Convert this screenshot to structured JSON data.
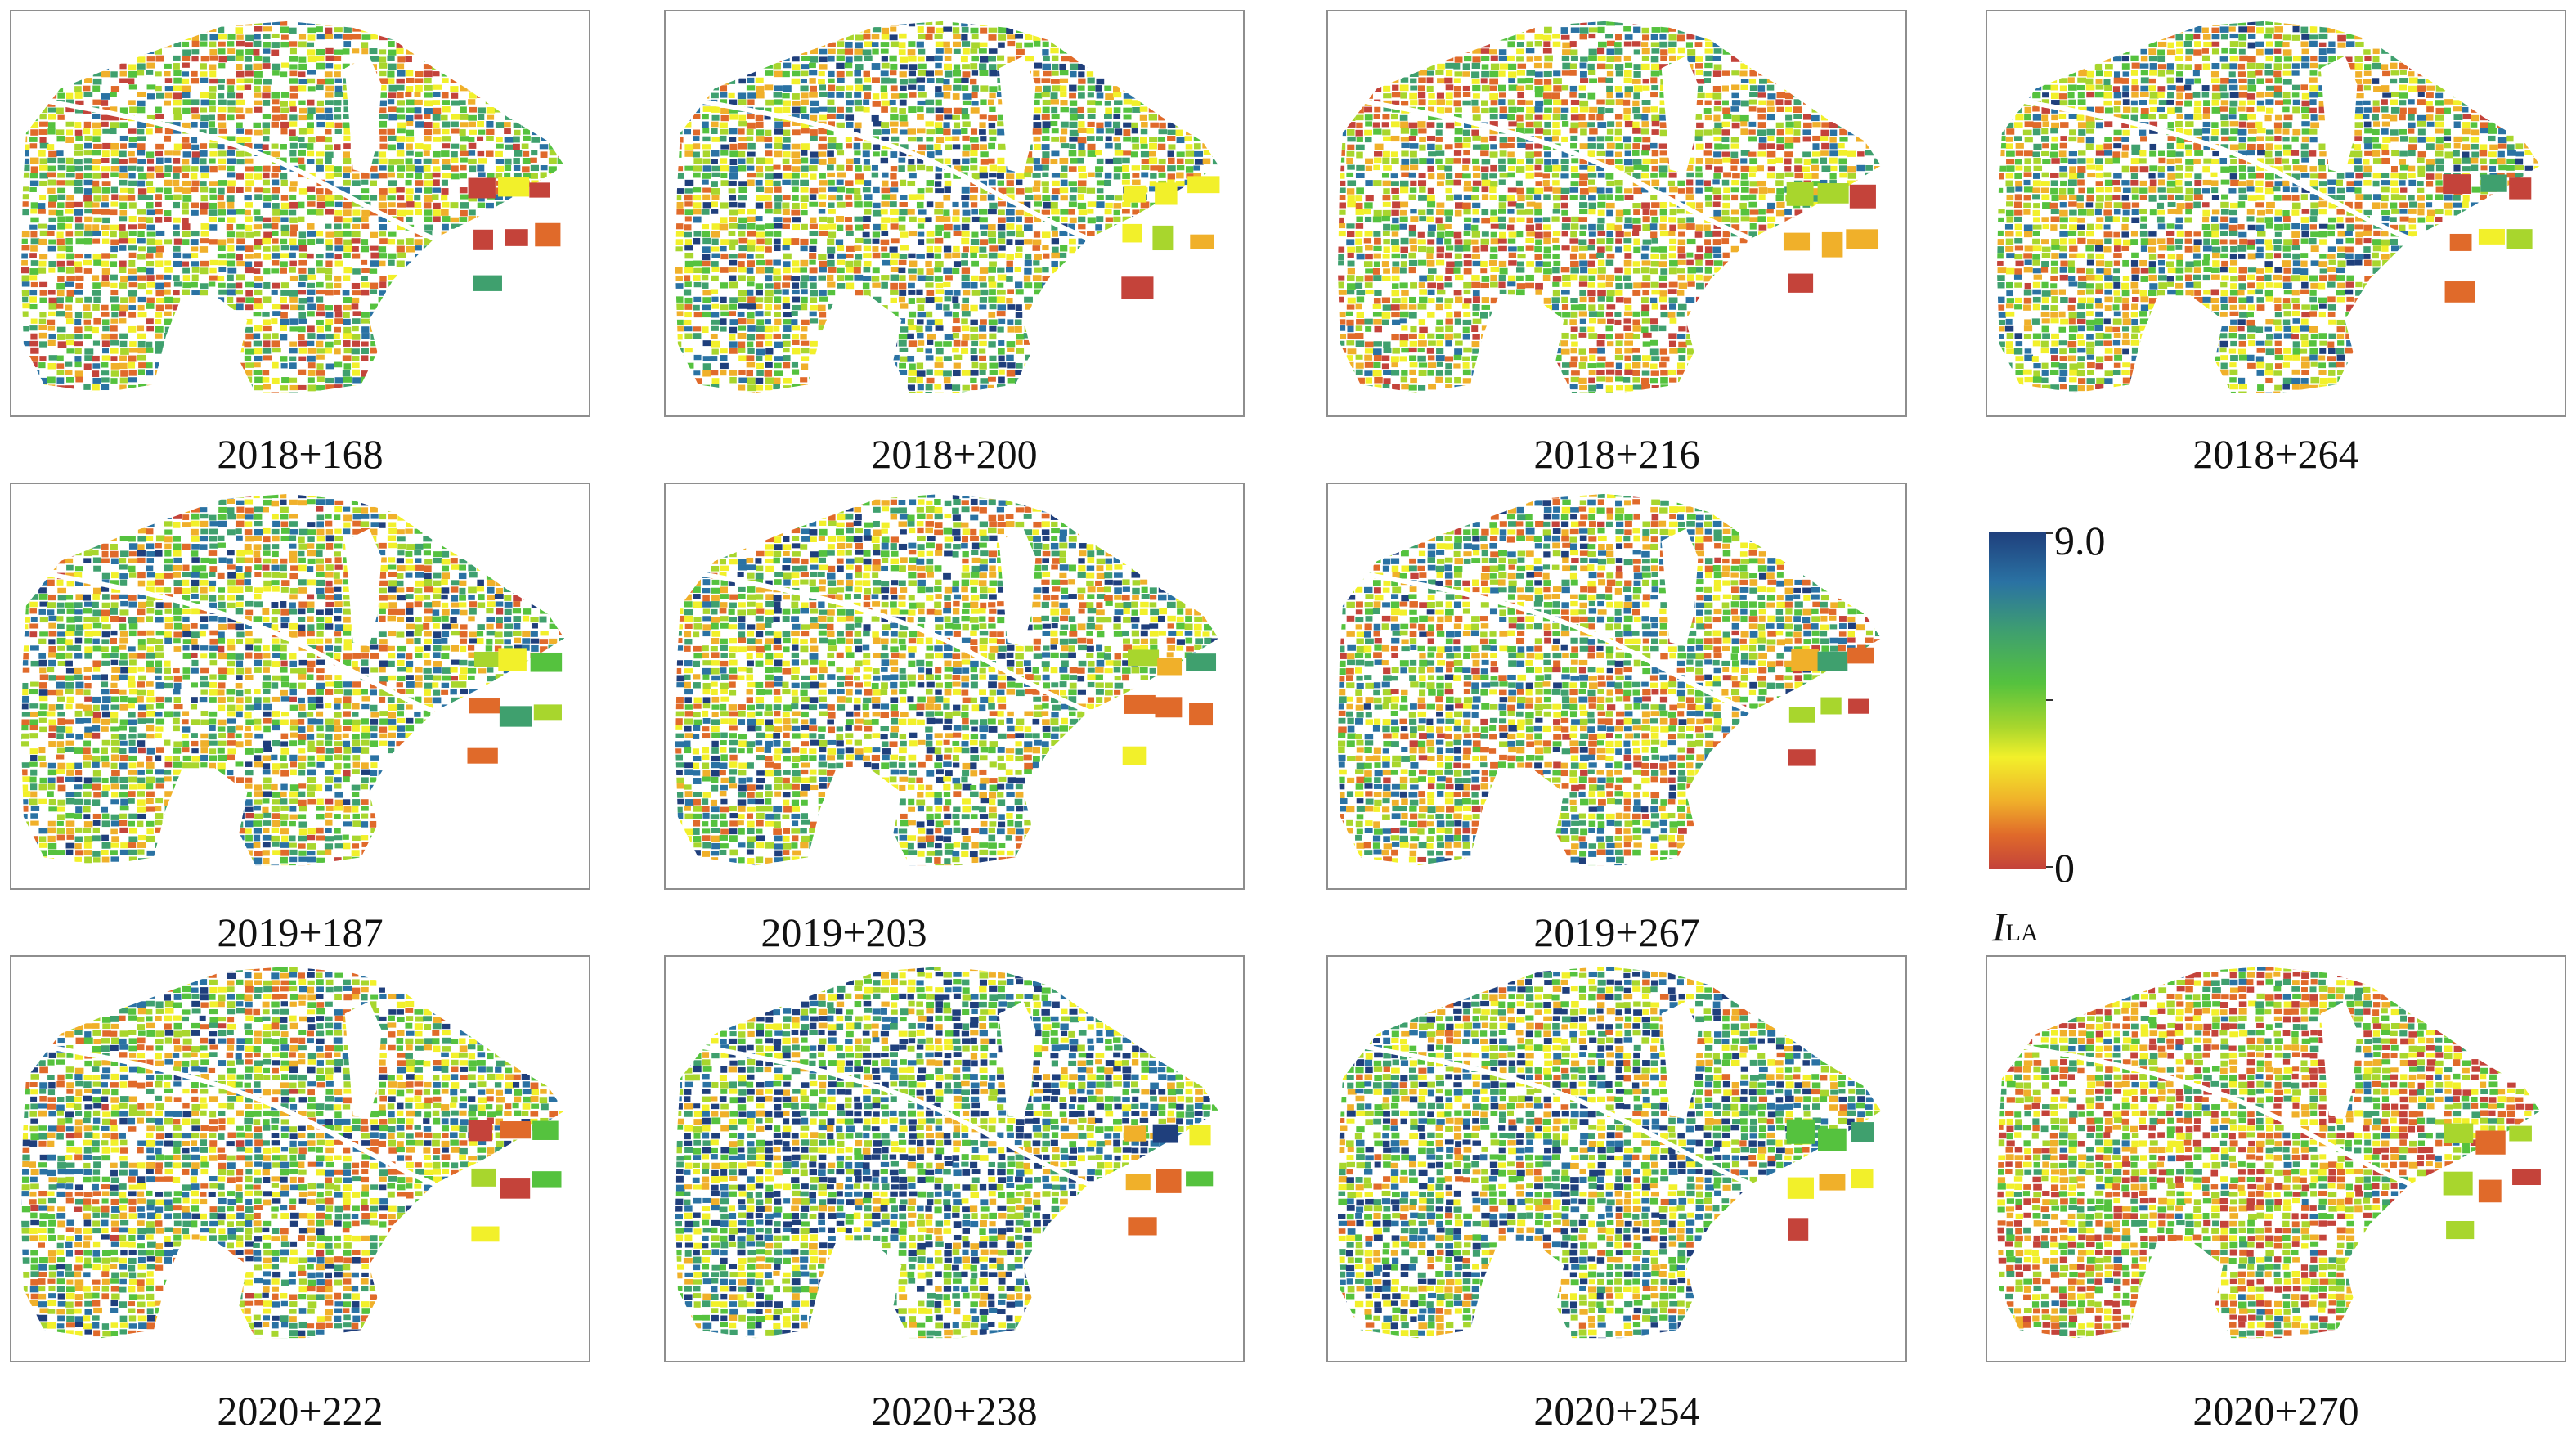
{
  "panels": [
    {
      "caption": "2018+168",
      "tone": 0.45
    },
    {
      "caption": "2018+200",
      "tone": 0.55
    },
    {
      "caption": "2018+216",
      "tone": 0.42
    },
    {
      "caption": "2018+264",
      "tone": 0.5
    },
    {
      "caption": "2019+187",
      "tone": 0.52
    },
    {
      "caption": "2019+203",
      "tone": 0.55
    },
    {
      "caption": "2019+267",
      "tone": 0.5
    },
    {
      "caption": "2020+222",
      "tone": 0.53
    },
    {
      "caption": "2020+238",
      "tone": 0.66
    },
    {
      "caption": "2020+254",
      "tone": 0.6
    },
    {
      "caption": "2020+270",
      "tone": 0.38
    }
  ],
  "colorbar": {
    "max_label": "9.0",
    "min_label": "0",
    "symbol": "I",
    "subscript": "LA",
    "colors": [
      "#1f3f7c",
      "#2a72a3",
      "#3fa06e",
      "#55c23e",
      "#a8d62d",
      "#f2f02a",
      "#f0b02a",
      "#e06a2a",
      "#c4433a"
    ]
  }
}
